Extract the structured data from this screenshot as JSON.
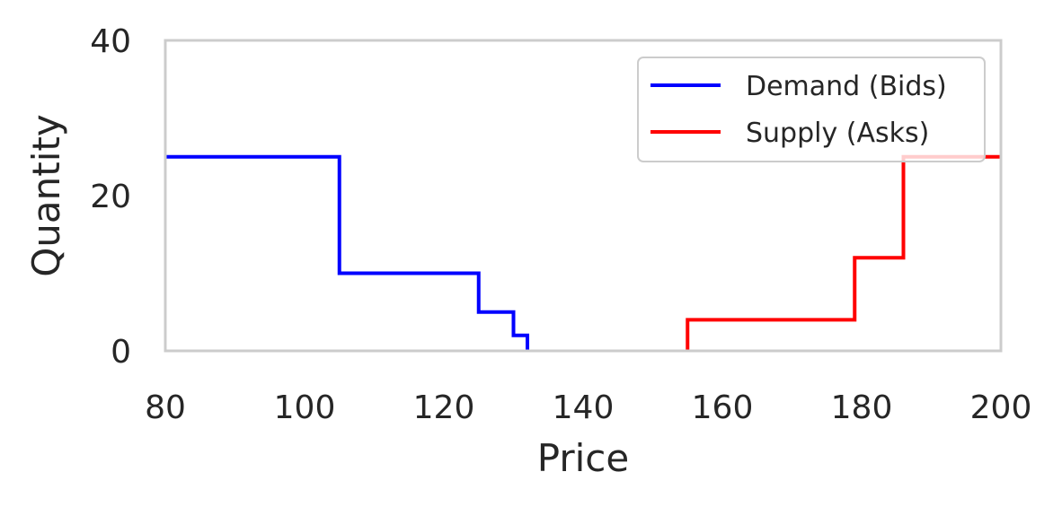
{
  "chart_data": {
    "type": "line",
    "step": true,
    "xlabel": "Price",
    "ylabel": "Quantity",
    "xlim": [
      80,
      200
    ],
    "ylim": [
      0,
      40
    ],
    "xticks": [
      "80",
      "100",
      "120",
      "140",
      "160",
      "180",
      "200"
    ],
    "yticks": [
      "0",
      "20",
      "40"
    ],
    "grid": false,
    "legend_position": "top-right",
    "series": [
      {
        "name": "Demand (Bids)",
        "color": "#0000ff",
        "points": [
          [
            80,
            25
          ],
          [
            105,
            25
          ],
          [
            105,
            10
          ],
          [
            125,
            10
          ],
          [
            125,
            5
          ],
          [
            130,
            5
          ],
          [
            130,
            2
          ],
          [
            132,
            2
          ],
          [
            132,
            0
          ]
        ]
      },
      {
        "name": "Supply (Asks)",
        "color": "#ff0000",
        "points": [
          [
            155,
            0
          ],
          [
            155,
            4
          ],
          [
            179,
            4
          ],
          [
            179,
            12
          ],
          [
            186,
            12
          ],
          [
            186,
            25
          ],
          [
            200,
            25
          ]
        ]
      }
    ]
  }
}
